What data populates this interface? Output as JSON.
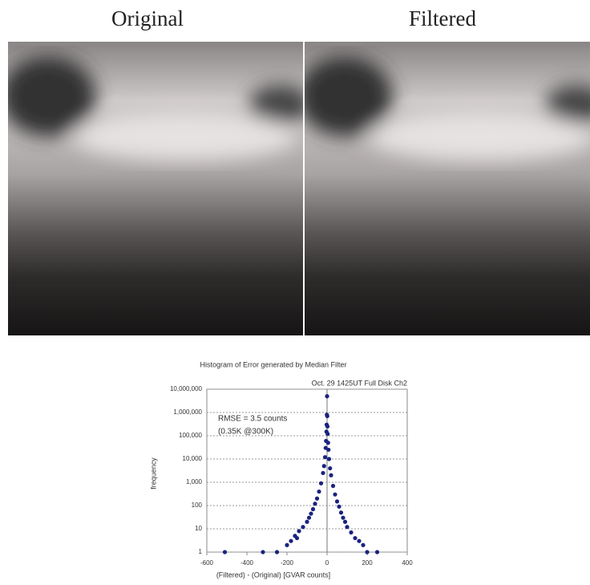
{
  "images": {
    "left_caption": "Original",
    "right_caption": "Filtered"
  },
  "chart_data": {
    "type": "scatter",
    "title": "Histogram of Error generated by Median Filter",
    "annotations": [
      "Oct. 29 1425UT Full Disk Ch2",
      "RMSE = 3.5 counts",
      "(0.35K @300K)"
    ],
    "xlabel": "(Filtered) - (Original) [GVAR counts]",
    "ylabel": "frequency",
    "color": "#1a237e",
    "log_y": true,
    "grid": true,
    "xlim": [
      -600,
      400
    ],
    "xticks": [
      -600,
      -400,
      -200,
      0,
      200,
      400
    ],
    "ylim": [
      1,
      10000000
    ],
    "yticks": [
      1,
      10,
      100,
      {
        "value": 1000,
        "label": "1,000"
      },
      {
        "value": 10000,
        "label": "10,000"
      },
      {
        "value": 100000,
        "label": "100,000"
      },
      {
        "value": 1000000,
        "label": "1,000,000"
      },
      {
        "value": 10000000,
        "label": "10,000,000"
      }
    ],
    "x": [
      -510,
      -320,
      -250,
      -200,
      -180,
      -160,
      -150,
      -140,
      -120,
      -100,
      -90,
      -80,
      -70,
      -60,
      -50,
      -40,
      -30,
      -20,
      -15,
      -10,
      -7,
      -5,
      -3,
      -2,
      -1,
      0,
      1,
      2,
      3,
      5,
      7,
      10,
      15,
      20,
      30,
      40,
      50,
      60,
      70,
      80,
      90,
      100,
      120,
      140,
      160,
      180,
      200,
      250
    ],
    "values": [
      1,
      1,
      1,
      2,
      3,
      5,
      4,
      8,
      12,
      20,
      30,
      45,
      70,
      120,
      200,
      400,
      900,
      2500,
      5000,
      12000,
      30000,
      60000,
      150000,
      300000,
      800000,
      5000000,
      700000,
      250000,
      120000,
      50000,
      25000,
      10000,
      4000,
      2000,
      700,
      300,
      150,
      90,
      50,
      30,
      20,
      12,
      7,
      4,
      3,
      2,
      1,
      1
    ]
  }
}
